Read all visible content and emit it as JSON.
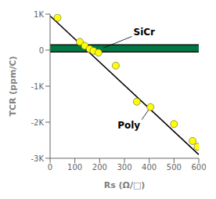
{
  "chart_data": {
    "type": "scatter",
    "title": "",
    "xlabel": "Rs (Ω/□)",
    "ylabel": "TCR (ppm/C)",
    "xlim": [
      0,
      600
    ],
    "ylim": [
      -3000,
      1000
    ],
    "xticks": [
      0,
      100,
      200,
      300,
      400,
      500,
      600
    ],
    "yticks": [
      {
        "value": -3000,
        "label": "-3K"
      },
      {
        "value": -2000,
        "label": "-2K"
      },
      {
        "value": -1000,
        "label": "-1K"
      },
      0,
      {
        "value": 1000,
        "label": "1K"
      }
    ],
    "grid": false,
    "series": [
      {
        "type": "line",
        "color": "black",
        "line_style": "solid",
        "x": [
          0,
          600
        ],
        "values": [
          950,
          -2900
        ]
      },
      {
        "type": "scatter",
        "color": "#ffff00",
        "marker": "circle",
        "x": [
          30,
          120,
          140,
          160,
          175,
          195,
          265,
          350,
          405,
          500,
          575,
          595
        ],
        "values": [
          900,
          230,
          120,
          30,
          -20,
          -70,
          -430,
          -1430,
          -1580,
          -2050,
          -2520,
          -2680
        ]
      }
    ],
    "band": {
      "ymin": -50,
      "ymax": 150,
      "color": "#007744"
    },
    "annotations": [
      {
        "text": "SiCr",
        "xy": [
          215,
          60
        ],
        "xytext": [
          330,
          380
        ]
      },
      {
        "text": "Poly",
        "xy": [
          405,
          -1580
        ],
        "xytext": [
          370,
          -1930
        ]
      }
    ]
  }
}
